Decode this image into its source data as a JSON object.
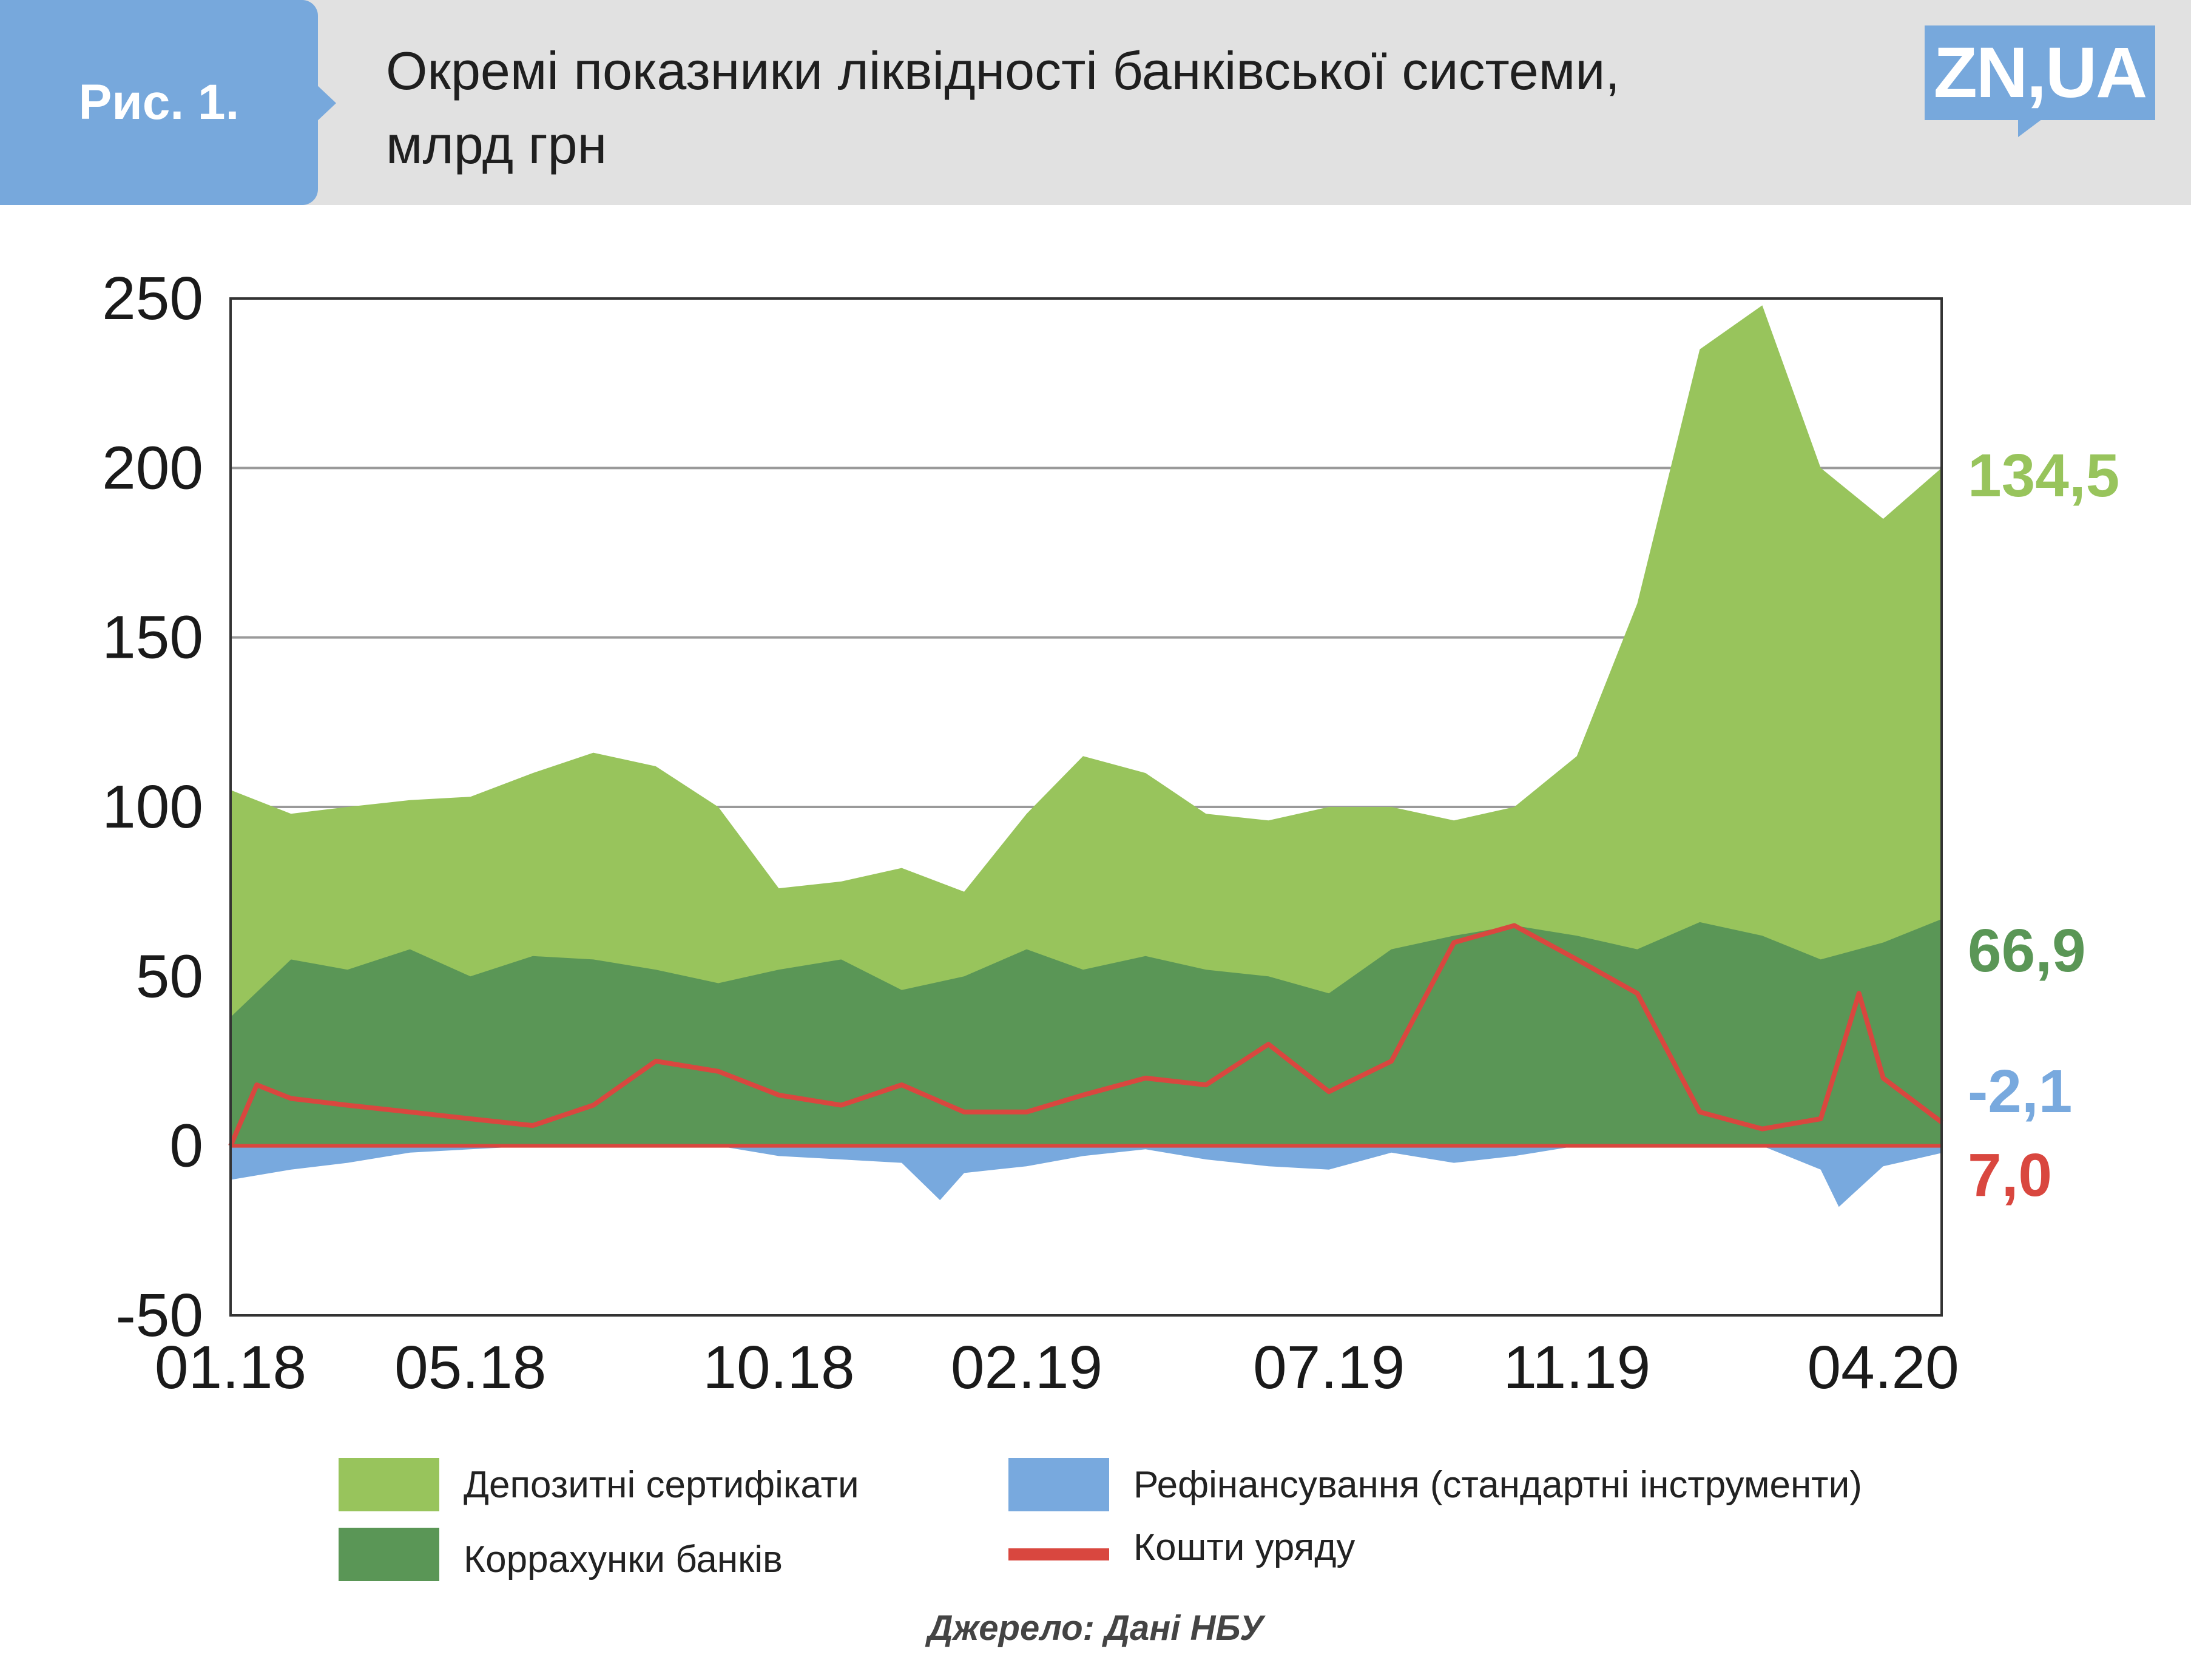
{
  "header": {
    "badge": "Рис. 1.",
    "title_line1": "Окремі показники ліквідності банківської системи,",
    "title_line2": "млрд грн",
    "logo": "ZN,UA"
  },
  "colors": {
    "header_bg": "#e1e1e1",
    "badge_bg": "#77a8dc",
    "light_green": "#98c45c",
    "dark_green": "#5a9656",
    "blue": "#78a9de",
    "red": "#d9473f"
  },
  "chart_data": {
    "type": "area",
    "ylim": [
      -50,
      250
    ],
    "yticks": [
      -50,
      0,
      50,
      100,
      150,
      200,
      250
    ],
    "ytick_labels": [
      "-50",
      "0",
      "50",
      "100",
      "150",
      "200",
      "250"
    ],
    "xlim": [
      "2018-01-02",
      "2020-04-30"
    ],
    "xtick_labels": [
      "01.18",
      "05.18",
      "10.18",
      "02.19",
      "07.19",
      "11.19",
      "04.20"
    ],
    "xtick_dates": [
      "2018-01-02",
      "2018-05-01",
      "2018-10-01",
      "2019-02-01",
      "2019-07-01",
      "2019-11-01",
      "2020-04-01"
    ],
    "grid": "horizontal",
    "legend_position": "bottom",
    "series": [
      {
        "name": "Депозитні сертифікати",
        "color": "#98c45c",
        "fill": "area",
        "end_label": "134,5",
        "x": [
          "2018-01-02",
          "2018-02-01",
          "2018-03-01",
          "2018-04-01",
          "2018-05-01",
          "2018-06-01",
          "2018-07-01",
          "2018-08-01",
          "2018-09-01",
          "2018-10-01",
          "2018-11-01",
          "2018-12-01",
          "2019-01-01",
          "2019-02-01",
          "2019-03-01",
          "2019-04-01",
          "2019-05-01",
          "2019-06-01",
          "2019-07-01",
          "2019-08-01",
          "2019-09-01",
          "2019-10-01",
          "2019-11-01",
          "2019-12-01",
          "2020-01-01",
          "2020-02-01",
          "2020-03-01",
          "2020-04-01",
          "2020-04-30"
        ],
        "y": [
          105,
          98,
          100,
          102,
          103,
          110,
          116,
          112,
          100,
          76,
          78,
          82,
          75,
          98,
          115,
          110,
          98,
          96,
          100,
          100,
          96,
          100,
          115,
          160,
          235,
          248,
          200,
          185,
          200
        ]
      },
      {
        "name": "Коррахунки банків",
        "color": "#5a9656",
        "fill": "area",
        "end_label": "66,9",
        "x": [
          "2018-01-02",
          "2018-02-01",
          "2018-03-01",
          "2018-04-01",
          "2018-05-01",
          "2018-06-01",
          "2018-07-01",
          "2018-08-01",
          "2018-09-01",
          "2018-10-01",
          "2018-11-01",
          "2018-12-01",
          "2019-01-01",
          "2019-02-01",
          "2019-03-01",
          "2019-04-01",
          "2019-05-01",
          "2019-06-01",
          "2019-07-01",
          "2019-08-01",
          "2019-09-01",
          "2019-10-01",
          "2019-11-01",
          "2019-12-01",
          "2020-01-01",
          "2020-02-01",
          "2020-03-01",
          "2020-04-01",
          "2020-04-30"
        ],
        "y": [
          38,
          55,
          52,
          58,
          50,
          56,
          55,
          52,
          48,
          52,
          55,
          46,
          50,
          58,
          52,
          56,
          52,
          50,
          45,
          58,
          62,
          65,
          62,
          58,
          66,
          62,
          55,
          60,
          66.9
        ]
      },
      {
        "name": "Рефінансування (стандартні інструменти)",
        "color": "#78a9de",
        "fill": "area",
        "end_label": "-2,1",
        "x": [
          "2018-01-02",
          "2018-02-01",
          "2018-03-01",
          "2018-04-01",
          "2018-05-01",
          "2018-06-01",
          "2018-07-01",
          "2018-08-01",
          "2018-09-01",
          "2018-10-01",
          "2018-11-01",
          "2018-12-01",
          "2018-12-20",
          "2019-01-01",
          "2019-02-01",
          "2019-03-01",
          "2019-04-01",
          "2019-05-01",
          "2019-06-01",
          "2019-07-01",
          "2019-08-01",
          "2019-09-01",
          "2019-10-01",
          "2019-11-01",
          "2019-12-01",
          "2020-01-01",
          "2020-02-01",
          "2020-03-01",
          "2020-03-10",
          "2020-04-01",
          "2020-04-30"
        ],
        "y": [
          -10,
          -7,
          -5,
          -2,
          -1,
          0,
          0,
          0,
          0,
          -3,
          -4,
          -5,
          -16,
          -8,
          -6,
          -3,
          -1,
          -4,
          -6,
          -7,
          -2,
          -5,
          -3,
          0,
          0,
          0,
          0,
          -7,
          -18,
          -6,
          -2.1
        ]
      },
      {
        "name": "Кошти уряду",
        "color": "#d9473f",
        "fill": "line",
        "end_label": "7,0",
        "x": [
          "2018-01-02",
          "2018-01-15",
          "2018-02-01",
          "2018-03-01",
          "2018-04-01",
          "2018-05-01",
          "2018-06-01",
          "2018-07-01",
          "2018-08-01",
          "2018-09-01",
          "2018-10-01",
          "2018-11-01",
          "2018-12-01",
          "2019-01-01",
          "2019-02-01",
          "2019-03-01",
          "2019-04-01",
          "2019-05-01",
          "2019-06-01",
          "2019-07-01",
          "2019-08-01",
          "2019-09-01",
          "2019-10-01",
          "2019-11-01",
          "2019-12-01",
          "2020-01-01",
          "2020-02-01",
          "2020-03-01",
          "2020-03-20",
          "2020-04-01",
          "2020-04-30"
        ],
        "y": [
          0,
          18,
          14,
          12,
          10,
          8,
          6,
          12,
          25,
          22,
          15,
          12,
          18,
          10,
          10,
          15,
          20,
          18,
          30,
          16,
          25,
          60,
          65,
          55,
          45,
          10,
          5,
          8,
          45,
          20,
          7
        ]
      }
    ]
  },
  "legend": [
    {
      "label": "Депозитні сертифікати",
      "kind": "box",
      "color": "#98c45c"
    },
    {
      "label": "Коррахунки банків",
      "kind": "box",
      "color": "#5a9656"
    },
    {
      "label": "Рефінансування (стандартні інструменти)",
      "kind": "box",
      "color": "#78a9de"
    },
    {
      "label": "Кошти уряду",
      "kind": "line",
      "color": "#d9473f"
    }
  ],
  "source": "Джерело: Дані НБУ"
}
